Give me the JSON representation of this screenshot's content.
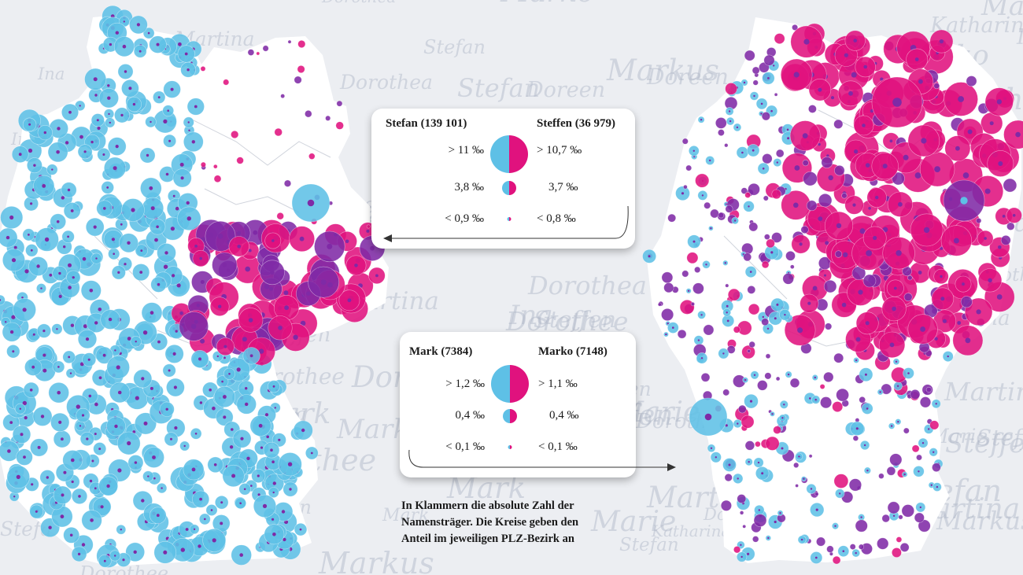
{
  "colors": {
    "blue": "#5ec0e6",
    "magenta": "#e0127e",
    "purple": "#7f2aa6",
    "land": "#ffffff",
    "background": "#eceef2",
    "script": "#aeb6c6"
  },
  "background_names": [
    "Stefan",
    "Steffen",
    "Mark",
    "Marko",
    "Katharina",
    "Dorothee",
    "Doreen",
    "Markus",
    "Martina",
    "Marie",
    "Ina",
    "Dorothea"
  ],
  "legend_top": {
    "left_title": "Stefan (139 101)",
    "right_title": "Steffen (36 979)",
    "left_values": [
      "> 11 ‰",
      "3,8 ‰",
      "< 0,9 ‰"
    ],
    "right_values": [
      "> 10,7 ‰",
      "3,7 ‰",
      "< 0,8 ‰"
    ],
    "arrow_direction": "left"
  },
  "legend_bottom": {
    "left_title": "Mark (7384)",
    "right_title": "Marko (7148)",
    "left_values": [
      "> 1,2 ‰",
      "0,4 ‰",
      "< 0,1 ‰"
    ],
    "right_values": [
      "> 1,1 ‰",
      "0,4 ‰",
      "< 0,1 ‰"
    ],
    "arrow_direction": "right"
  },
  "caption": {
    "lines": [
      "In Klammern die absolute Zahl der",
      "Namensträger. Die Kreise geben den",
      "Anteil im jeweiligen PLZ-Bezirk an"
    ]
  }
}
